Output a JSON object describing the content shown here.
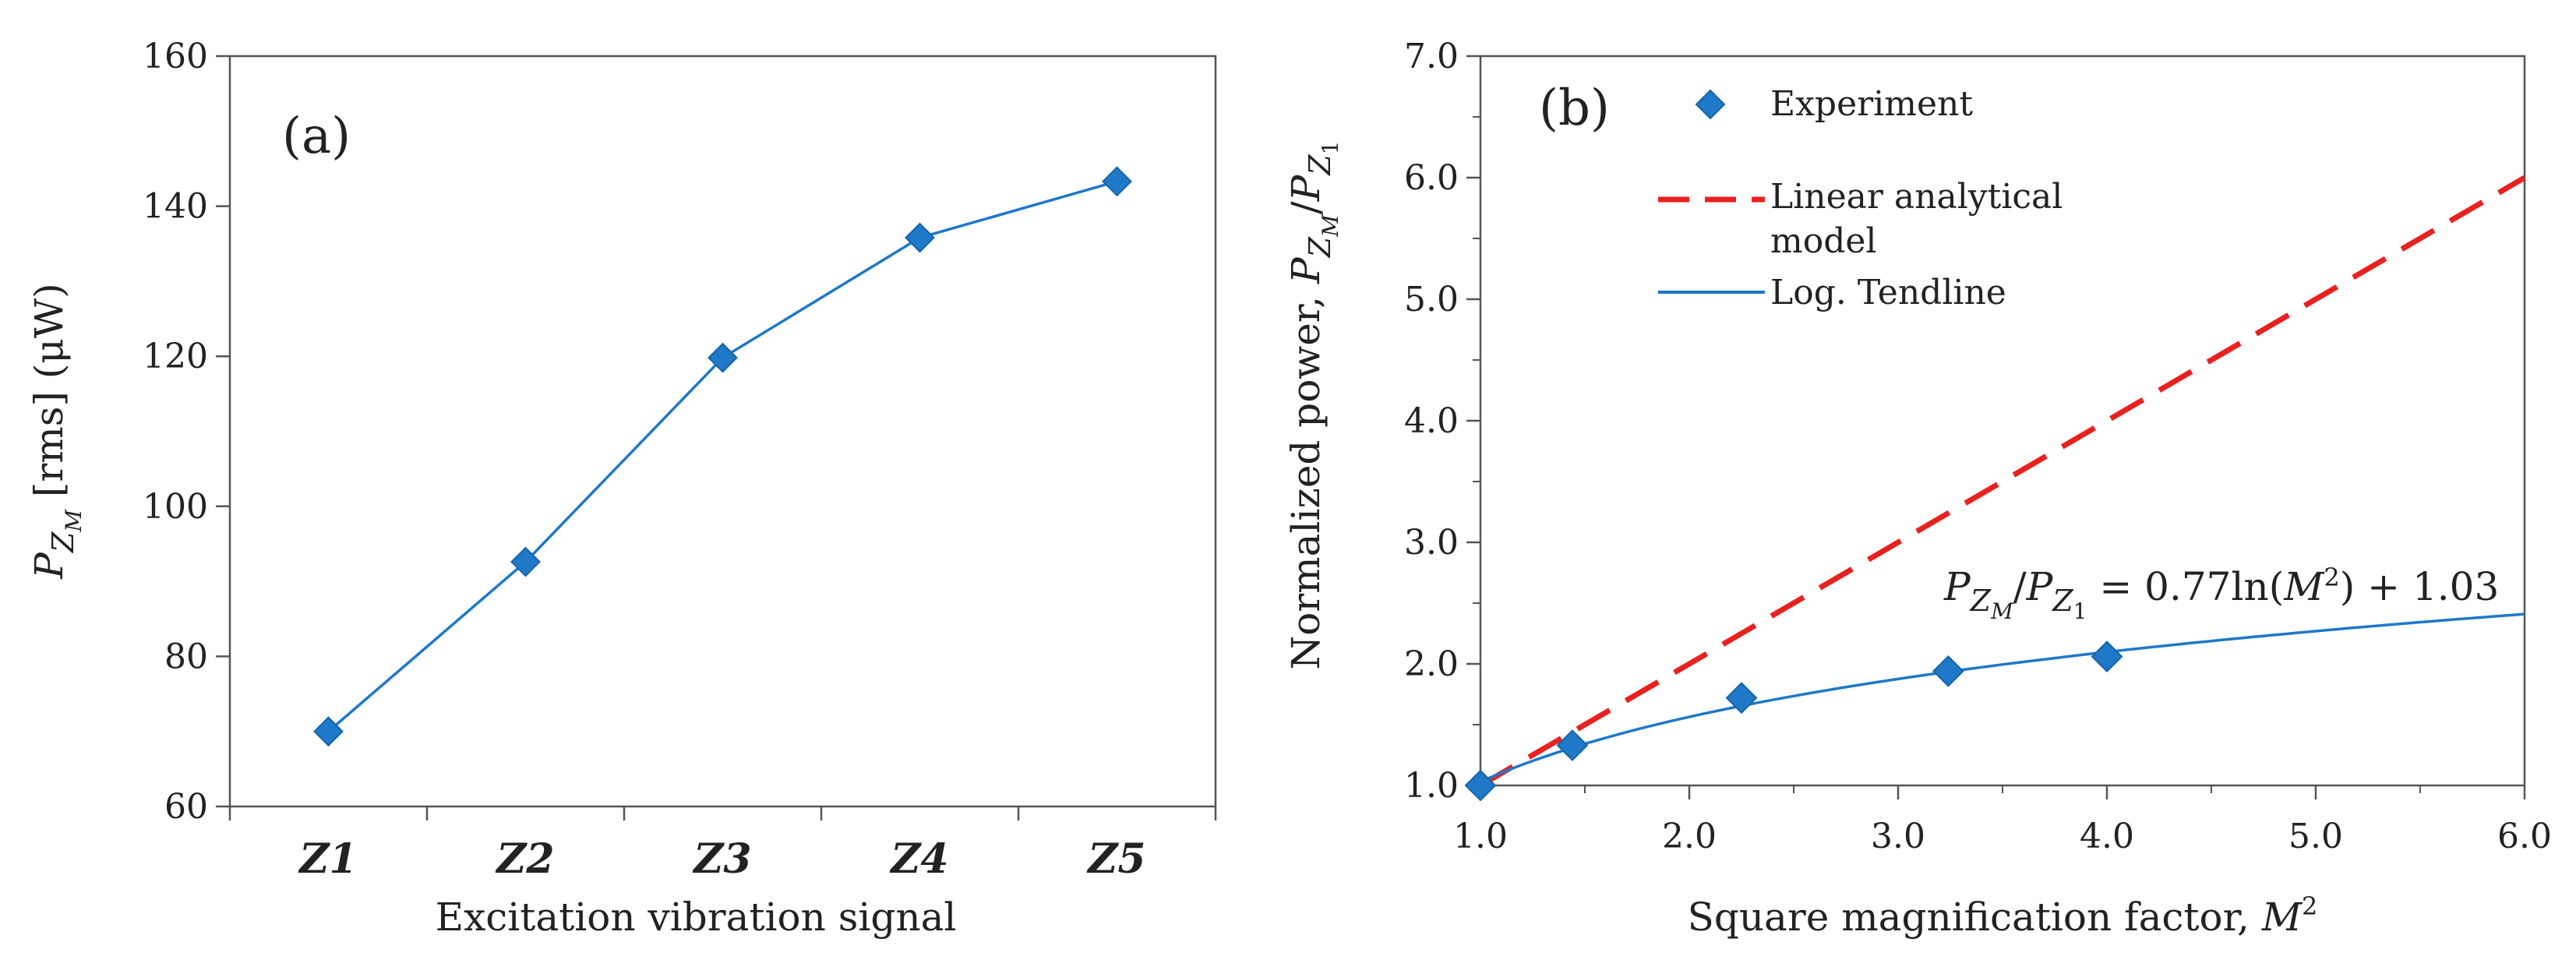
{
  "chart_data": [
    {
      "type": "line",
      "panel_label": "(a)",
      "categories": [
        "Z1",
        "Z2",
        "Z3",
        "Z4",
        "Z5"
      ],
      "series": [
        {
          "values": [
            70,
            92.6,
            119.8,
            135.8,
            143.3
          ],
          "color": "#1f78c8",
          "marker": "diamond"
        }
      ],
      "xlabel": "Excitation vibration signal",
      "ylabel_main": "P",
      "ylabel_sub": "Z",
      "ylabel_subsub": "M",
      "ylabel_rest": " [rms] (μW)",
      "ylim": [
        60,
        160
      ],
      "yticks": [
        "60",
        "80",
        "100",
        "120",
        "140",
        "160"
      ],
      "grid": false
    },
    {
      "type": "scatter",
      "panel_label": "(b)",
      "x": [
        1.0,
        1.44,
        2.25,
        3.24,
        4.0
      ],
      "series": [
        {
          "name": "Experiment",
          "kind": "markers",
          "y": [
            1.0,
            1.33,
            1.72,
            1.94,
            2.06
          ],
          "color": "#1f78c8",
          "marker": "diamond"
        },
        {
          "name": "Linear analytical",
          "name_line2": "model",
          "kind": "line",
          "style": "dashed",
          "color": "#e8211f",
          "x": [
            1.0,
            6.0
          ],
          "y": [
            1.0,
            6.0
          ]
        },
        {
          "name": "Log. Tendline",
          "kind": "line",
          "style": "solid",
          "color": "#1f78c8",
          "equation": {
            "a": 0.77,
            "b": 1.03,
            "form": "a*ln(x)+b"
          }
        }
      ],
      "xlabel": "Square magnification factor, ",
      "xlabel_italic": "M",
      "xlabel_sup": "2",
      "ylabel_text": "Normalized power, ",
      "ylabel_p1": "P",
      "ylabel_p1_sub": "Z",
      "ylabel_p1_subsub": "M",
      "ylabel_slash": "/",
      "ylabel_p2": "P",
      "ylabel_p2_sub": "Z",
      "ylabel_p2_subsub": "1",
      "xlim": [
        1.0,
        6.0
      ],
      "ylim": [
        1.0,
        7.0
      ],
      "xticks": [
        "1.0",
        "2.0",
        "3.0",
        "4.0",
        "5.0",
        "6.0"
      ],
      "yticks": [
        "1.0",
        "2.0",
        "3.0",
        "4.0",
        "5.0",
        "6.0",
        "7.0"
      ],
      "annotation": {
        "p": "P",
        "z": "Z",
        "m": "M",
        "slash": "/",
        "one": "1",
        "rhs_a": " = 0.77ln(",
        "rhs_m": "M",
        "rhs_sup": "2",
        "rhs_b": ") + 1.03"
      },
      "legend_position": "top-left",
      "grid": false
    }
  ]
}
